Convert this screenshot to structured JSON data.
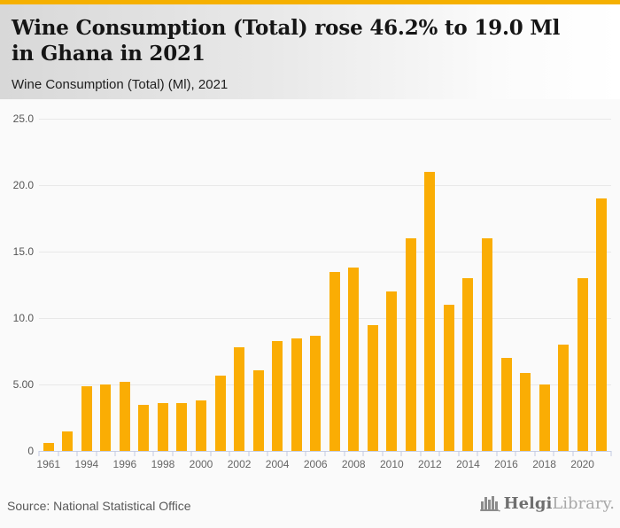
{
  "colors": {
    "accent": "#F5B000",
    "bar": "#FAAD04",
    "gridline": "#e8e8e8",
    "axis": "#c9cfe4"
  },
  "header": {
    "title": "Wine Consumption (Total) rose 46.2% to 19.0 Ml in Ghana in 2021",
    "subtitle": "Wine Consumption (Total) (Ml), 2021"
  },
  "chart_data": {
    "type": "bar",
    "title": "Wine Consumption (Total) (Ml), 2021",
    "xlabel": "",
    "ylabel": "",
    "ylim": [
      0,
      25
    ],
    "grid": true,
    "legend": false,
    "bar_color": "#FAAD04",
    "categories": [
      1961,
      1993,
      1994,
      1995,
      1996,
      1997,
      1998,
      1999,
      2000,
      2001,
      2002,
      2003,
      2004,
      2005,
      2006,
      2007,
      2008,
      2009,
      2010,
      2011,
      2012,
      2013,
      2014,
      2015,
      2016,
      2017,
      2018,
      2019,
      2020,
      2021
    ],
    "values": [
      0.6,
      1.5,
      4.9,
      5.0,
      5.2,
      3.5,
      3.6,
      3.6,
      3.8,
      5.7,
      7.8,
      6.1,
      8.3,
      8.5,
      8.7,
      13.5,
      13.8,
      9.5,
      12.0,
      16.0,
      21.0,
      11.0,
      13.0,
      16.0,
      7.0,
      5.9,
      5.0,
      8.0,
      13.0,
      19.0
    ],
    "yticks": [
      {
        "value": 0,
        "label": "0"
      },
      {
        "value": 5,
        "label": "5.00"
      },
      {
        "value": 10,
        "label": "10.0"
      },
      {
        "value": 15,
        "label": "15.0"
      },
      {
        "value": 20,
        "label": "20.0"
      },
      {
        "value": 25,
        "label": "25.0"
      }
    ],
    "x_axis_labels": [
      "1961",
      "1994",
      "1996",
      "1998",
      "2000",
      "2002",
      "2004",
      "2006",
      "2008",
      "2010",
      "2012",
      "2014",
      "2016",
      "2018",
      "2020"
    ]
  },
  "footer": {
    "source": "Source: National Statistical Office",
    "logo": {
      "icon": "bar-chart-logo-icon",
      "part1": "Helgi",
      "part2": "Library."
    }
  }
}
